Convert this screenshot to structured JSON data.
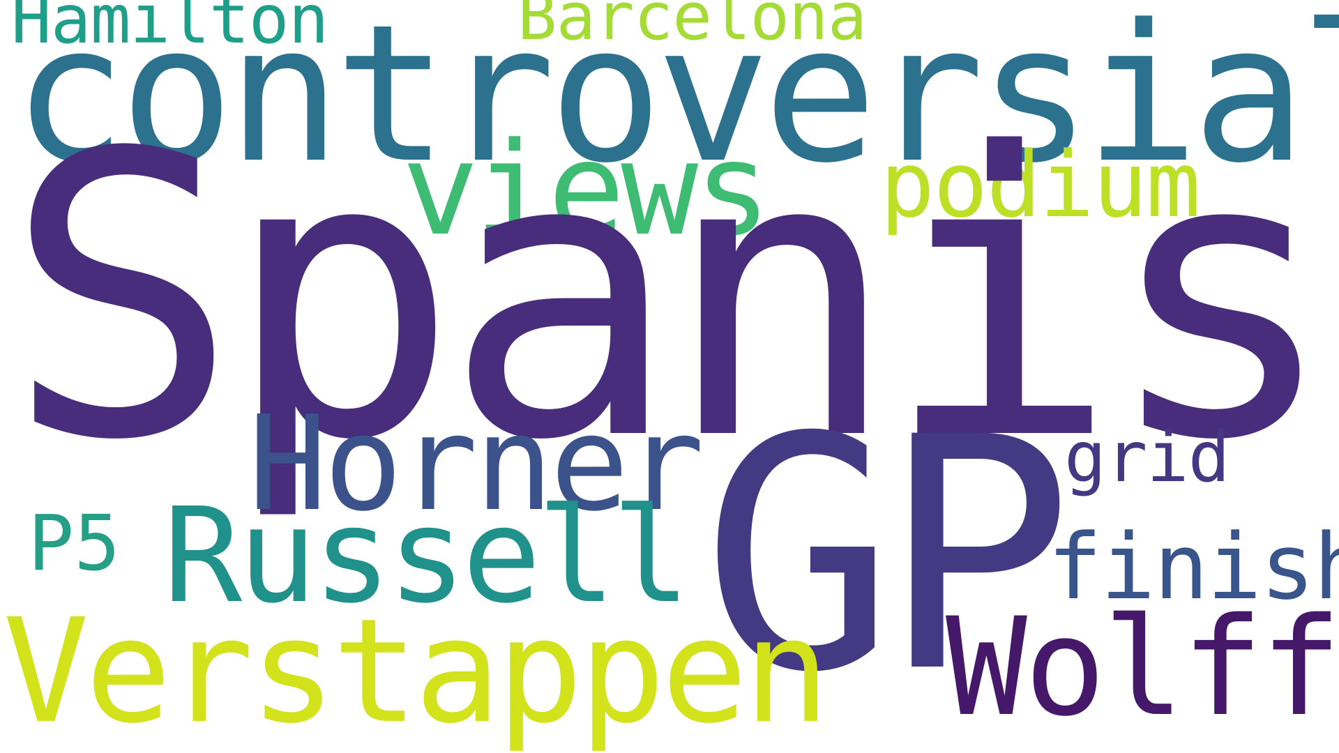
{
  "word_cloud": {
    "background": "#ffffff",
    "words": {
      "spanish": {
        "text": "Spanish",
        "color": "#472d7b"
      },
      "gp": {
        "text": "GP",
        "color": "#433a83"
      },
      "controversial": {
        "text": "controversial",
        "color": "#2c718e"
      },
      "verstappen": {
        "text": "Verstappen",
        "color": "#d2e21b"
      },
      "horner": {
        "text": "Horner",
        "color": "#3b528b"
      },
      "russell": {
        "text": "Russell",
        "color": "#21918c"
      },
      "wolff": {
        "text": "Wolff",
        "color": "#46186a"
      },
      "views": {
        "text": "views",
        "color": "#3fbc73"
      },
      "podium": {
        "text": "podium",
        "color": "#bddf26"
      },
      "finish": {
        "text": "finish",
        "color": "#3a548c"
      },
      "hamilton": {
        "text": "Hamilton",
        "color": "#1f9e89"
      },
      "barcelona": {
        "text": "Barcelona",
        "color": "#a5db36"
      },
      "grid": {
        "text": "grid",
        "color": "#453781"
      },
      "p5": {
        "text": "P5",
        "color": "#25a086"
      }
    }
  }
}
